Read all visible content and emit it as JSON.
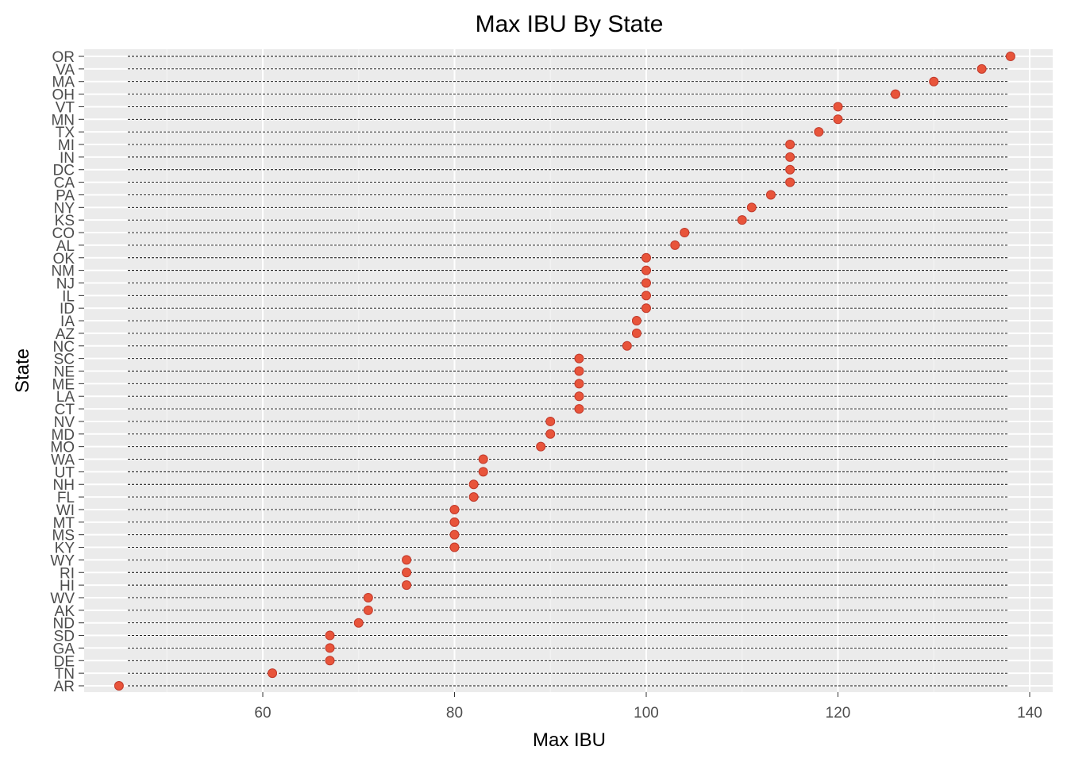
{
  "chart_data": {
    "type": "scatter",
    "title": "Max IBU By State",
    "xlabel": "Max IBU",
    "ylabel": "State",
    "xlim": [
      43,
      140
    ],
    "xticks": [
      60,
      80,
      100,
      120,
      140
    ],
    "grid": true,
    "segments": "dashed line from x-axis start to right edge for each state",
    "point_color": "#e8543a",
    "panel_background": "#ebebeb",
    "categories": [
      "OR",
      "VA",
      "MA",
      "OH",
      "VT",
      "MN",
      "TX",
      "MI",
      "IN",
      "DC",
      "CA",
      "PA",
      "NY",
      "KS",
      "CO",
      "AL",
      "OK",
      "NM",
      "NJ",
      "IL",
      "ID",
      "IA",
      "AZ",
      "NC",
      "SC",
      "NE",
      "ME",
      "LA",
      "CT",
      "NV",
      "MD",
      "MO",
      "WA",
      "UT",
      "NH",
      "FL",
      "WI",
      "MT",
      "MS",
      "KY",
      "WY",
      "RI",
      "HI",
      "WV",
      "AK",
      "ND",
      "SD",
      "GA",
      "DE",
      "TN",
      "AR"
    ],
    "values": [
      138,
      135,
      130,
      126,
      120,
      120,
      118,
      115,
      115,
      115,
      115,
      113,
      111,
      110,
      104,
      103,
      100,
      100,
      100,
      100,
      100,
      99,
      99,
      98,
      93,
      93,
      93,
      93,
      93,
      90,
      90,
      89,
      83,
      83,
      82,
      82,
      80,
      80,
      80,
      80,
      75,
      75,
      75,
      71,
      71,
      70,
      67,
      67,
      67,
      61,
      45
    ]
  }
}
